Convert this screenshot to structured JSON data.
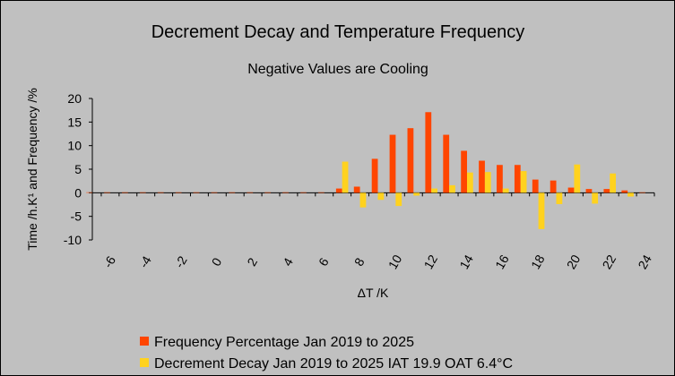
{
  "chart_data": {
    "type": "bar",
    "title": "Decrement Decay and Temperature Frequency",
    "subtitle": "Negative Values are Cooling",
    "xlabel": "ΔT /K",
    "ylabel": "Time /h.K¹ and Frequency /%",
    "ylim": [
      -10,
      20
    ],
    "yticks": [
      -10,
      -5,
      0,
      5,
      10,
      15,
      20
    ],
    "xlim": [
      -7,
      24.5
    ],
    "xticks": [
      -6,
      -4,
      -2,
      0,
      2,
      4,
      6,
      8,
      10,
      12,
      14,
      16,
      18,
      20,
      22,
      24
    ],
    "x": [
      -7,
      -6,
      -5,
      -4,
      -3,
      -2,
      -1,
      0,
      1,
      2,
      3,
      4,
      5,
      6,
      7,
      8,
      9,
      10,
      11,
      12,
      13,
      14,
      15,
      16,
      17,
      18,
      19,
      20,
      21,
      22,
      23,
      24
    ],
    "grid": false,
    "legend_position": "bottom",
    "series": [
      {
        "name": "Frequency Percentage Jan 2019 to 2025",
        "color": "#ff4500",
        "values": [
          0.1,
          0.1,
          0.1,
          0.1,
          0.1,
          0.1,
          0.1,
          0.1,
          0.1,
          0.1,
          0.1,
          0.1,
          0.1,
          0.1,
          0.9,
          1.3,
          7.2,
          12.3,
          13.7,
          17.1,
          12.3,
          8.9,
          6.8,
          5.9,
          5.9,
          2.8,
          2.6,
          1.1,
          0.8,
          0.8,
          0.5,
          0.1
        ]
      },
      {
        "name": "Decrement Decay Jan 2019 to 2025 IAT 19.9 OAT 6.4°C",
        "color": "#ffd21f",
        "values": [
          0,
          0,
          0,
          0,
          0,
          0,
          0,
          0,
          0,
          0,
          0,
          0,
          0,
          0,
          6.6,
          -3.1,
          -1.5,
          -2.8,
          -0.6,
          0.9,
          1.6,
          4.3,
          4.4,
          0.9,
          4.6,
          -7.7,
          -2.4,
          6.0,
          -2.3,
          4.1,
          -0.8,
          0
        ]
      }
    ]
  }
}
